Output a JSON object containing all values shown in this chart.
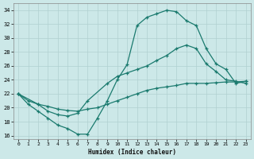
{
  "xlabel": "Humidex (Indice chaleur)",
  "bg_color": "#cce8e8",
  "grid_color": "#b0d0d0",
  "line_color": "#1a7a6e",
  "curve1_x": [
    0,
    1,
    2,
    3,
    4,
    5,
    6,
    7,
    8,
    9,
    10,
    11,
    12,
    13,
    14,
    15,
    16,
    17,
    18,
    19,
    20,
    21,
    22,
    23
  ],
  "curve1_y": [
    22,
    20.5,
    19.5,
    18.5,
    17.5,
    17.0,
    16.2,
    16.2,
    18.5,
    21.0,
    24.0,
    26.2,
    31.8,
    33.0,
    33.5,
    34.0,
    33.8,
    32.5,
    31.8,
    28.5,
    26.3,
    25.5,
    23.5,
    23.8
  ],
  "curve2_x": [
    0,
    2,
    3,
    4,
    5,
    6,
    7,
    9,
    10,
    11,
    12,
    13,
    14,
    15,
    16,
    17,
    18,
    19,
    20,
    21,
    22,
    23
  ],
  "curve2_y": [
    22,
    20.5,
    19.5,
    19.0,
    18.8,
    19.2,
    21.0,
    23.5,
    24.5,
    25.0,
    25.5,
    26.0,
    26.8,
    27.5,
    28.5,
    29.0,
    28.5,
    26.3,
    25.2,
    24.0,
    23.8,
    23.5
  ],
  "curve3_x": [
    0,
    1,
    2,
    3,
    4,
    5,
    6,
    7,
    8,
    9,
    10,
    11,
    12,
    13,
    14,
    15,
    16,
    17,
    18,
    19,
    20,
    21,
    22,
    23
  ],
  "curve3_y": [
    22,
    21.0,
    20.5,
    20.2,
    19.8,
    19.6,
    19.5,
    19.8,
    20.0,
    20.5,
    21.0,
    21.5,
    22.0,
    22.5,
    22.8,
    23.0,
    23.2,
    23.5,
    23.5,
    23.5,
    23.6,
    23.7,
    23.7,
    23.8
  ],
  "ylim": [
    15.5,
    35
  ],
  "xlim": [
    -0.5,
    23.5
  ],
  "yticks": [
    16,
    18,
    20,
    22,
    24,
    26,
    28,
    30,
    32,
    34
  ],
  "xticks": [
    0,
    1,
    2,
    3,
    4,
    5,
    6,
    7,
    8,
    9,
    10,
    11,
    12,
    13,
    14,
    15,
    16,
    17,
    18,
    19,
    20,
    21,
    22,
    23
  ]
}
